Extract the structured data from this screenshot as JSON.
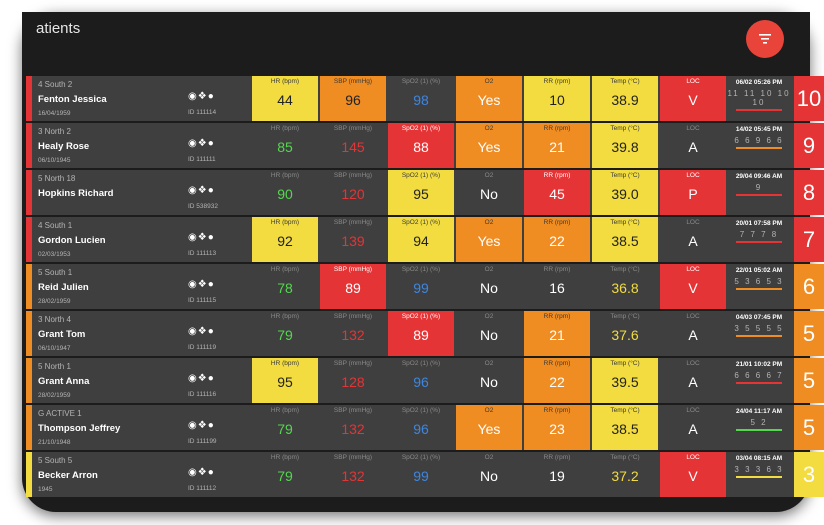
{
  "header": {
    "title": "atients"
  },
  "colors": {
    "green": "#55d64f",
    "red": "#e43436",
    "blue": "#3d86e0",
    "yellow": "#f2dc3f",
    "orange": "#ef8c22"
  },
  "patients": [
    {
      "ward": "4 South 2",
      "name": "Fenton Jessica",
      "dob": "16/04/1959",
      "id": "ID 111114",
      "strip": "#e43436",
      "vitals": [
        {
          "label": "HR (bpm)",
          "value": "44",
          "bg": "y",
          "text": "k"
        },
        {
          "label": "SBP (mmHg)",
          "value": "96",
          "bg": "o",
          "text": "k"
        },
        {
          "label": "SpO2 (1) (%)",
          "value": "98",
          "bg": "",
          "text": "b"
        },
        {
          "label": "O2",
          "value": "Yes",
          "bg": "o",
          "text": "w"
        },
        {
          "label": "RR (rpm)",
          "value": "10",
          "bg": "y",
          "text": "k"
        },
        {
          "label": "Temp (°C)",
          "value": "38.9",
          "bg": "y",
          "text": "k"
        },
        {
          "label": "LOC",
          "value": "V",
          "bg": "r",
          "text": "w"
        }
      ],
      "datetime": "06/02 05:26 PM",
      "trend": "11 11 10 10 10",
      "trend_color": "#e43436",
      "score": "10",
      "score_color": "#e43436"
    },
    {
      "ward": "3 North 2",
      "name": "Healy Rose",
      "dob": "06/10/1945",
      "id": "ID 111111",
      "strip": "#e43436",
      "vitals": [
        {
          "label": "HR (bpm)",
          "value": "85",
          "bg": "",
          "text": "g"
        },
        {
          "label": "SBP (mmHg)",
          "value": "145",
          "bg": "",
          "text": "r"
        },
        {
          "label": "SpO2 (1) (%)",
          "value": "88",
          "bg": "r",
          "text": "w"
        },
        {
          "label": "O2",
          "value": "Yes",
          "bg": "o",
          "text": "w"
        },
        {
          "label": "RR (rpm)",
          "value": "21",
          "bg": "o",
          "text": "w"
        },
        {
          "label": "Temp (°C)",
          "value": "39.8",
          "bg": "y",
          "text": "k"
        },
        {
          "label": "LOC",
          "value": "A",
          "bg": "",
          "text": "w"
        }
      ],
      "datetime": "14/02 05:45 PM",
      "trend": "6 6 9 6 6",
      "trend_color": "#ef8c22",
      "score": "9",
      "score_color": "#e43436"
    },
    {
      "ward": "5 North 18",
      "name": "Hopkins Richard",
      "dob": "",
      "id": "ID 538932",
      "strip": "#e43436",
      "vitals": [
        {
          "label": "HR (bpm)",
          "value": "90",
          "bg": "",
          "text": "g"
        },
        {
          "label": "SBP (mmHg)",
          "value": "120",
          "bg": "",
          "text": "r"
        },
        {
          "label": "SpO2 (1) (%)",
          "value": "95",
          "bg": "y",
          "text": "k"
        },
        {
          "label": "O2",
          "value": "No",
          "bg": "",
          "text": "w"
        },
        {
          "label": "RR (rpm)",
          "value": "45",
          "bg": "r",
          "text": "w"
        },
        {
          "label": "Temp (°C)",
          "value": "39.0",
          "bg": "y",
          "text": "k"
        },
        {
          "label": "LOC",
          "value": "P",
          "bg": "r",
          "text": "w"
        }
      ],
      "datetime": "29/04 09:46 AM",
      "trend": "9",
      "trend_color": "#e43436",
      "score": "8",
      "score_color": "#e43436"
    },
    {
      "ward": "4 South 1",
      "name": "Gordon Lucien",
      "dob": "02/03/1953",
      "id": "ID 111113",
      "strip": "#e43436",
      "vitals": [
        {
          "label": "HR (bpm)",
          "value": "92",
          "bg": "y",
          "text": "k"
        },
        {
          "label": "SBP (mmHg)",
          "value": "139",
          "bg": "",
          "text": "r"
        },
        {
          "label": "SpO2 (1) (%)",
          "value": "94",
          "bg": "y",
          "text": "k"
        },
        {
          "label": "O2",
          "value": "Yes",
          "bg": "o",
          "text": "w"
        },
        {
          "label": "RR (rpm)",
          "value": "22",
          "bg": "o",
          "text": "w"
        },
        {
          "label": "Temp (°C)",
          "value": "38.5",
          "bg": "y",
          "text": "k"
        },
        {
          "label": "LOC",
          "value": "A",
          "bg": "",
          "text": "w"
        }
      ],
      "datetime": "20/01 07:58 PM",
      "trend": "7 7 7 8",
      "trend_color": "#e43436",
      "score": "7",
      "score_color": "#e43436"
    },
    {
      "ward": "5 South 1",
      "name": "Reid Julien",
      "dob": "28/02/1959",
      "id": "ID 111115",
      "strip": "#ef8c22",
      "vitals": [
        {
          "label": "HR (bpm)",
          "value": "78",
          "bg": "",
          "text": "g"
        },
        {
          "label": "SBP (mmHg)",
          "value": "89",
          "bg": "r",
          "text": "w"
        },
        {
          "label": "SpO2 (1) (%)",
          "value": "99",
          "bg": "",
          "text": "b"
        },
        {
          "label": "O2",
          "value": "No",
          "bg": "",
          "text": "w"
        },
        {
          "label": "RR (rpm)",
          "value": "16",
          "bg": "",
          "text": "w"
        },
        {
          "label": "Temp (°C)",
          "value": "36.8",
          "bg": "",
          "text": "y"
        },
        {
          "label": "LOC",
          "value": "V",
          "bg": "r",
          "text": "w"
        }
      ],
      "datetime": "22/01 05:02 AM",
      "trend": "5 3 6 5 3",
      "trend_color": "#ef8c22",
      "score": "6",
      "score_color": "#ef8c22"
    },
    {
      "ward": "3 North 4",
      "name": "Grant Tom",
      "dob": "06/10/1947",
      "id": "ID 111119",
      "strip": "#ef8c22",
      "vitals": [
        {
          "label": "HR (bpm)",
          "value": "79",
          "bg": "",
          "text": "g"
        },
        {
          "label": "SBP (mmHg)",
          "value": "132",
          "bg": "",
          "text": "r"
        },
        {
          "label": "SpO2 (1) (%)",
          "value": "89",
          "bg": "r",
          "text": "w"
        },
        {
          "label": "O2",
          "value": "No",
          "bg": "",
          "text": "w"
        },
        {
          "label": "RR (rpm)",
          "value": "21",
          "bg": "o",
          "text": "w"
        },
        {
          "label": "Temp (°C)",
          "value": "37.6",
          "bg": "",
          "text": "y"
        },
        {
          "label": "LOC",
          "value": "A",
          "bg": "",
          "text": "w"
        }
      ],
      "datetime": "04/03 07:45 PM",
      "trend": "3 5 5 5 5",
      "trend_color": "#ef8c22",
      "score": "5",
      "score_color": "#ef8c22"
    },
    {
      "ward": "5 North 1",
      "name": "Grant Anna",
      "dob": "28/02/1959",
      "id": "ID 111116",
      "strip": "#ef8c22",
      "vitals": [
        {
          "label": "HR (bpm)",
          "value": "95",
          "bg": "y",
          "text": "k"
        },
        {
          "label": "SBP (mmHg)",
          "value": "128",
          "bg": "",
          "text": "r"
        },
        {
          "label": "SpO2 (1) (%)",
          "value": "96",
          "bg": "",
          "text": "b"
        },
        {
          "label": "O2",
          "value": "No",
          "bg": "",
          "text": "w"
        },
        {
          "label": "RR (rpm)",
          "value": "22",
          "bg": "o",
          "text": "w"
        },
        {
          "label": "Temp (°C)",
          "value": "39.5",
          "bg": "y",
          "text": "k"
        },
        {
          "label": "LOC",
          "value": "A",
          "bg": "",
          "text": "w"
        }
      ],
      "datetime": "21/01 10:02 PM",
      "trend": "6 6 6 6 7",
      "trend_color": "#e43436",
      "score": "5",
      "score_color": "#ef8c22"
    },
    {
      "ward": "G ACTIVE 1",
      "name": "Thompson Jeffrey",
      "dob": "21/10/1948",
      "id": "ID 111199",
      "strip": "#ef8c22",
      "vitals": [
        {
          "label": "HR (bpm)",
          "value": "79",
          "bg": "",
          "text": "g"
        },
        {
          "label": "SBP (mmHg)",
          "value": "132",
          "bg": "",
          "text": "r"
        },
        {
          "label": "SpO2 (1) (%)",
          "value": "96",
          "bg": "",
          "text": "b"
        },
        {
          "label": "O2",
          "value": "Yes",
          "bg": "o",
          "text": "w"
        },
        {
          "label": "RR (rpm)",
          "value": "23",
          "bg": "o",
          "text": "w"
        },
        {
          "label": "Temp (°C)",
          "value": "38.5",
          "bg": "y",
          "text": "k"
        },
        {
          "label": "LOC",
          "value": "A",
          "bg": "",
          "text": "w"
        }
      ],
      "datetime": "24/04 11:17 AM",
      "trend": "5 2",
      "trend_color": "#55d64f",
      "score": "5",
      "score_color": "#ef8c22"
    },
    {
      "ward": "5 South 5",
      "name": "Becker Arron",
      "dob": "1945",
      "id": "ID 111112",
      "strip": "#f2dc3f",
      "vitals": [
        {
          "label": "HR (bpm)",
          "value": "79",
          "bg": "",
          "text": "g"
        },
        {
          "label": "SBP (mmHg)",
          "value": "132",
          "bg": "",
          "text": "r"
        },
        {
          "label": "SpO2 (1) (%)",
          "value": "99",
          "bg": "",
          "text": "b"
        },
        {
          "label": "O2",
          "value": "No",
          "bg": "",
          "text": "w"
        },
        {
          "label": "RR (rpm)",
          "value": "19",
          "bg": "",
          "text": "w"
        },
        {
          "label": "Temp (°C)",
          "value": "37.2",
          "bg": "",
          "text": "y"
        },
        {
          "label": "LOC",
          "value": "V",
          "bg": "r",
          "text": "w"
        }
      ],
      "datetime": "03/04 08:15 AM",
      "trend": "3 3 3 6 3",
      "trend_color": "#f2dc3f",
      "score": "3",
      "score_color": "#f2dc3f"
    }
  ]
}
